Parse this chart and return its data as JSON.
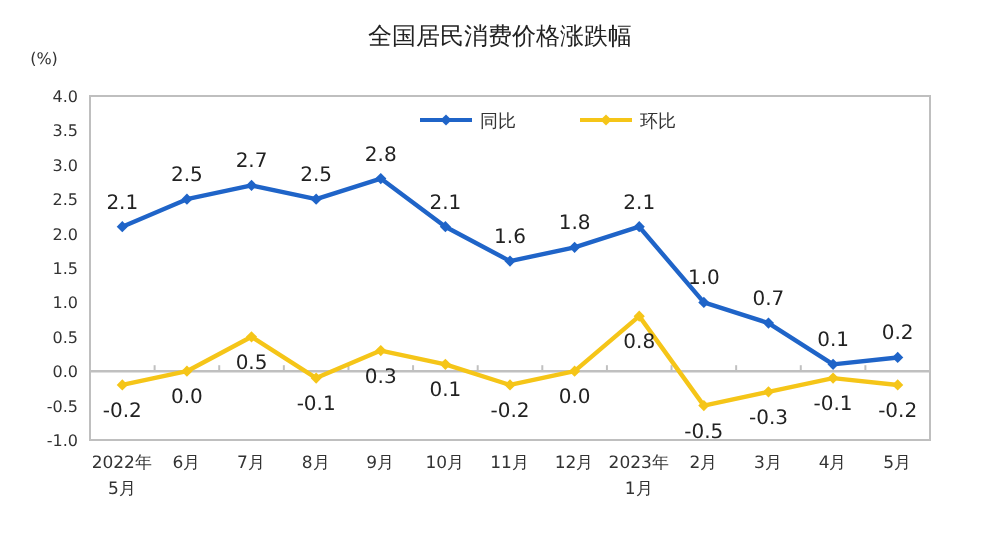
{
  "chart_data": {
    "type": "line",
    "title": "全国居民消费价格涨跌幅",
    "ylabel": "(%)",
    "categories": [
      "2022年\n5月",
      "6月",
      "7月",
      "8月",
      "9月",
      "10月",
      "11月",
      "12月",
      "2023年\n1月",
      "2月",
      "3月",
      "4月",
      "5月"
    ],
    "series": [
      {
        "name": "同比",
        "color": "#1f64c8",
        "values": [
          2.1,
          2.5,
          2.7,
          2.5,
          2.8,
          2.1,
          1.6,
          1.8,
          2.1,
          1.0,
          0.7,
          0.1,
          0.2
        ],
        "value_labels": [
          "2.1",
          "2.5",
          "2.7",
          "2.5",
          "2.8",
          "2.1",
          "1.6",
          "1.8",
          "2.1",
          "1.0",
          "0.7",
          "0.1",
          "0.2"
        ]
      },
      {
        "name": "环比",
        "color": "#f5c518",
        "values": [
          -0.2,
          0.0,
          0.5,
          -0.1,
          0.3,
          0.1,
          -0.2,
          0.0,
          0.8,
          -0.5,
          -0.3,
          -0.1,
          -0.2
        ],
        "value_labels": [
          "-0.2",
          "0.0",
          "0.5",
          "-0.1",
          "0.3",
          "0.1",
          "-0.2",
          "0.0",
          "0.8",
          "-0.5",
          "-0.3",
          "-0.1",
          "-0.2"
        ]
      }
    ],
    "ylim": [
      -1.0,
      4.0
    ],
    "yticks": [
      {
        "value": -1.0,
        "label": "-1.0"
      },
      {
        "value": -0.5,
        "label": "-0.5"
      },
      {
        "value": 0,
        "label": "0.0"
      },
      {
        "value": 0.5,
        "label": "0.5"
      },
      {
        "value": 1.0,
        "label": "1.0"
      },
      {
        "value": 1.5,
        "label": "1.5"
      },
      {
        "value": 2.0,
        "label": "2.0"
      },
      {
        "value": 2.5,
        "label": "2.5"
      },
      {
        "value": 3.0,
        "label": "3.0"
      },
      {
        "value": 3.5,
        "label": "3.5"
      },
      {
        "value": 4.0,
        "label": "4.0"
      }
    ],
    "ref_lines": [
      {
        "axis": "y",
        "value": 0,
        "color": "#c0c0c0"
      }
    ],
    "grid": false,
    "legend": "top",
    "marker": "diamond",
    "line_style": "solid"
  }
}
